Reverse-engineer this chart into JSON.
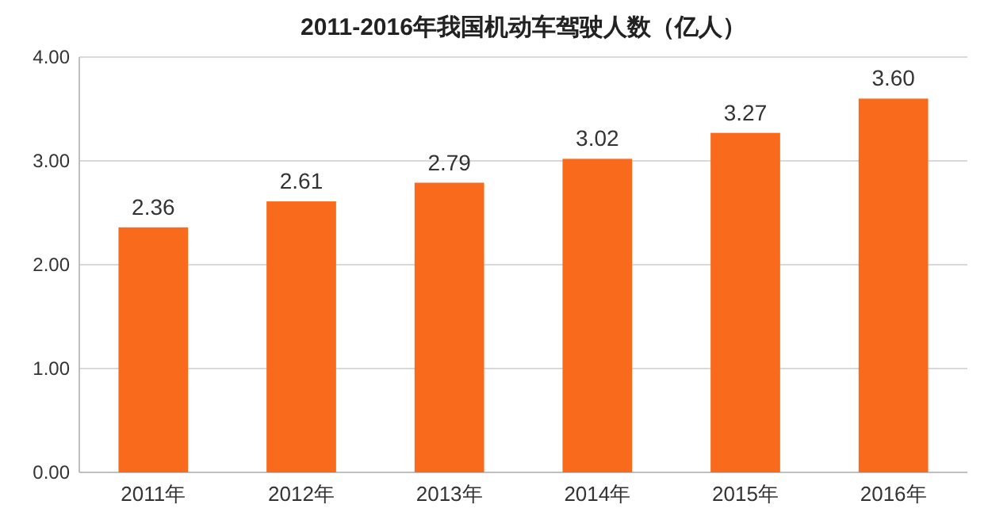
{
  "chart_data": {
    "type": "bar",
    "title": "2011-2016年我国机动车驾驶人数（亿人）",
    "categories": [
      "2011年",
      "2012年",
      "2013年",
      "2014年",
      "2015年",
      "2016年"
    ],
    "values": [
      2.36,
      2.61,
      2.79,
      3.02,
      3.27,
      3.6
    ],
    "value_labels": [
      "2.36",
      "2.61",
      "2.79",
      "3.02",
      "3.27",
      "3.60"
    ],
    "color": "#fa6a1c",
    "ylim": [
      0,
      4
    ],
    "yticks": [
      {
        "value": 0,
        "label": "0.00"
      },
      {
        "value": 1,
        "label": "1.00"
      },
      {
        "value": 2,
        "label": "2.00"
      },
      {
        "value": 3,
        "label": "3.00"
      },
      {
        "value": 4,
        "label": "4.00"
      }
    ],
    "grid": "y"
  }
}
